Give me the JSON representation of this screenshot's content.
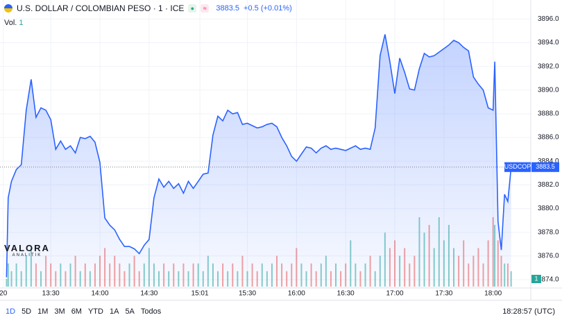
{
  "header": {
    "symbol": "U.S. DOLLAR / COLOMBIAN PESO · 1 · ICE",
    "change": "+0.5 (+0.01%)",
    "vol_label": "Vol.",
    "vol_value": "1"
  },
  "logo": {
    "name": "VALORA",
    "sub": "ANALITIK"
  },
  "footer": {
    "ranges": [
      "1D",
      "5D",
      "1M",
      "3M",
      "6M",
      "YTD",
      "1A",
      "5A",
      "Todos"
    ],
    "clock": "18:28:57 (UTC)"
  },
  "chart_data": {
    "type": "area",
    "x": [
      "13:03",
      "13:04",
      "13:06",
      "13:09",
      "13:12",
      "13:15",
      "13:18",
      "13:21",
      "13:24",
      "13:27",
      "13:30",
      "13:33",
      "13:36",
      "13:39",
      "13:42",
      "13:45",
      "13:48",
      "13:51",
      "13:54",
      "13:57",
      "14:00",
      "14:03",
      "14:06",
      "14:09",
      "14:12",
      "14:15",
      "14:18",
      "14:21",
      "14:24",
      "14:27",
      "14:30",
      "14:33",
      "14:36",
      "14:39",
      "14:42",
      "14:45",
      "14:48",
      "14:51",
      "14:54",
      "14:57",
      "15:00",
      "15:03",
      "15:06",
      "15:09",
      "15:12",
      "15:15",
      "15:18",
      "15:21",
      "15:24",
      "15:27",
      "15:30",
      "15:33",
      "15:36",
      "15:39",
      "15:42",
      "15:45",
      "15:48",
      "15:51",
      "15:54",
      "15:57",
      "16:00",
      "16:03",
      "16:06",
      "16:09",
      "16:12",
      "16:15",
      "16:18",
      "16:21",
      "16:24",
      "16:27",
      "16:30",
      "16:33",
      "16:36",
      "16:39",
      "16:42",
      "16:45",
      "16:48",
      "16:51",
      "16:54",
      "16:57",
      "17:00",
      "17:03",
      "17:06",
      "17:09",
      "17:12",
      "17:15",
      "17:18",
      "17:21",
      "17:24",
      "17:27",
      "17:30",
      "17:33",
      "17:36",
      "17:39",
      "17:42",
      "17:45",
      "17:48",
      "17:51",
      "17:54",
      "17:57",
      "18:00",
      "18:01",
      "18:03",
      "18:05",
      "18:07",
      "18:09",
      "18:11"
    ],
    "series": [
      {
        "name": "USDCOP",
        "color": "#2962ff",
        "values": [
          3874.2,
          3880.9,
          3882.3,
          3883.3,
          3883.7,
          3888.3,
          3890.9,
          3887.7,
          3888.5,
          3888.3,
          3887.5,
          3885.0,
          3885.7,
          3885.0,
          3885.3,
          3884.7,
          3886.0,
          3885.9,
          3886.1,
          3885.6,
          3883.9,
          3879.2,
          3878.6,
          3878.2,
          3877.4,
          3876.8,
          3876.8,
          3876.6,
          3876.2,
          3876.9,
          3877.4,
          3880.9,
          3882.5,
          3881.8,
          3882.3,
          3881.7,
          3882.1,
          3881.3,
          3882.3,
          3881.7,
          3882.3,
          3882.9,
          3883.0,
          3886.2,
          3887.8,
          3887.4,
          3888.3,
          3888.0,
          3888.1,
          3887.1,
          3887.2,
          3887.0,
          3886.8,
          3886.9,
          3887.1,
          3887.2,
          3886.9,
          3886.0,
          3885.3,
          3884.4,
          3884.0,
          3884.6,
          3885.2,
          3885.1,
          3884.7,
          3885.1,
          3885.3,
          3885.0,
          3885.1,
          3885.0,
          3884.9,
          3885.1,
          3885.3,
          3885.0,
          3885.1,
          3885.0,
          3886.8,
          3892.9,
          3894.7,
          3892.4,
          3889.7,
          3892.7,
          3891.5,
          3890.1,
          3890.0,
          3891.8,
          3893.1,
          3892.8,
          3892.9,
          3893.2,
          3893.5,
          3893.8,
          3894.2,
          3894.0,
          3893.6,
          3893.3,
          3891.1,
          3890.5,
          3890.0,
          3888.5,
          3888.3,
          3892.4,
          3878.9,
          3876.5,
          3881.2,
          3880.6,
          3883.5
        ]
      },
      {
        "name": "Vol.",
        "type": "volume",
        "up_color": "#26a69a",
        "down_color": "#ef5350",
        "values": [
          1,
          3,
          2,
          3,
          2,
          4,
          5,
          3,
          2,
          4,
          3,
          2,
          3,
          2,
          3,
          4,
          2,
          3,
          2,
          3,
          4,
          5,
          3,
          4,
          3,
          2,
          3,
          4,
          2,
          3,
          5,
          3,
          2,
          3,
          2,
          3,
          2,
          3,
          2,
          3,
          3,
          2,
          4,
          3,
          2,
          3,
          2,
          3,
          2,
          4,
          2,
          3,
          2,
          3,
          2,
          3,
          4,
          3,
          2,
          3,
          5,
          3,
          2,
          3,
          2,
          3,
          4,
          2,
          3,
          2,
          3,
          6,
          3,
          2,
          3,
          4,
          2,
          4,
          7,
          5,
          6,
          4,
          5,
          3,
          4,
          9,
          7,
          8,
          5,
          9,
          6,
          8,
          5,
          4,
          6,
          3,
          4,
          5,
          3,
          6,
          9,
          8,
          6,
          4,
          3,
          3,
          2
        ]
      }
    ],
    "last_price": 3883.5,
    "xlim": [
      "12:59",
      "18:23"
    ],
    "xticks": [
      {
        "value": "13:01",
        "label": "20"
      },
      "13:30",
      "14:00",
      "14:30",
      "15:01",
      "15:30",
      "16:00",
      "16:30",
      "17:00",
      "17:30",
      "18:00"
    ],
    "ylim": [
      3873.3,
      3897.6
    ],
    "yticks": [
      {
        "value": 3874,
        "label": "3874.0"
      },
      {
        "value": 3876,
        "label": "3876.0"
      },
      {
        "value": 3878,
        "label": "3878.0"
      },
      {
        "value": 3880,
        "label": "3880.0"
      },
      {
        "value": 3882,
        "label": "3882.0"
      },
      {
        "value": 3884,
        "label": "3884.0"
      },
      {
        "value": 3886,
        "label": "3886.0"
      },
      {
        "value": 3888,
        "label": "3888.0"
      },
      {
        "value": 3890,
        "label": "3890.0"
      },
      {
        "value": 3892,
        "label": "3892.0"
      },
      {
        "value": 3894,
        "label": "3894.0"
      },
      {
        "value": 3896,
        "label": "3896.0"
      }
    ],
    "grid": true
  }
}
